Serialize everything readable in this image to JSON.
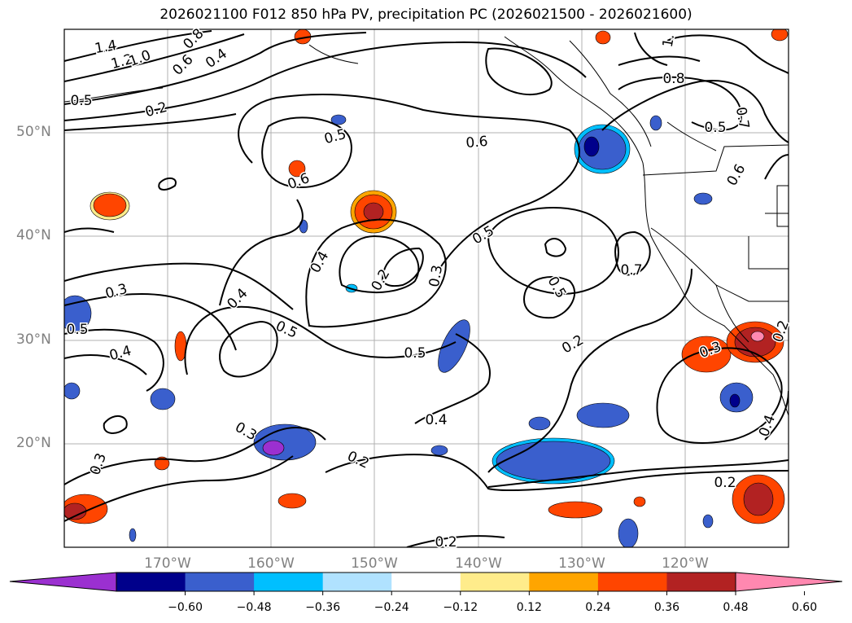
{
  "title": "2026021100 F012 850 hPa PV, precipitation PC (2026021500 - 2026021600)",
  "lat_labels": [
    "50°N",
    "40°N",
    "30°N",
    "20°N"
  ],
  "lon_labels": [
    "170°W",
    "160°W",
    "150°W",
    "140°W",
    "130°W",
    "120°W"
  ],
  "colorbar": {
    "ticks": [
      "−0.60",
      "−0.48",
      "−0.36",
      "−0.24",
      "−0.12",
      "0.12",
      "0.24",
      "0.36",
      "0.48",
      "0.60"
    ],
    "colors": [
      "#9b30d0",
      "#00008b",
      "#3a5fcd",
      "#00bfff",
      "#b0e2ff",
      "#ffffff",
      "#ffec8b",
      "#ffa500",
      "#ff4500",
      "#b22222",
      "#ff88b0"
    ]
  },
  "contour_labels": [
    "1.4",
    "1.2",
    "1.0",
    "0.6",
    "0.8",
    "0.4",
    "0.5",
    "0.2",
    "0.5",
    "0.6",
    "0.6",
    "1.",
    "0.8",
    "0.5",
    "0.7",
    "0.6",
    "0.5",
    "0.4",
    "0.2",
    "0.3",
    "0.5",
    "0.7",
    "0.3",
    "0.4",
    "0.5",
    "0.5",
    "0.4",
    "0.2",
    "0.5",
    "0.3",
    "0.2",
    "0.4",
    "0.4",
    "0.3",
    "0.2",
    "0.3",
    "0.2",
    "0.2"
  ],
  "map": {
    "lat_range": [
      10,
      60
    ],
    "lon_range": [
      -180,
      -110
    ],
    "precip_colors": {
      "pos_light": "#ffec8b",
      "pos_orange": "#ffa500",
      "pos_red": "#ff4500",
      "pos_dark": "#b22222",
      "pos_pink": "#ff88b0",
      "neg_light": "#b0e2ff",
      "neg_cyan": "#00bfff",
      "neg_blue": "#3a5fcd",
      "neg_navy": "#00008b",
      "neg_purple": "#9b30d0"
    }
  }
}
